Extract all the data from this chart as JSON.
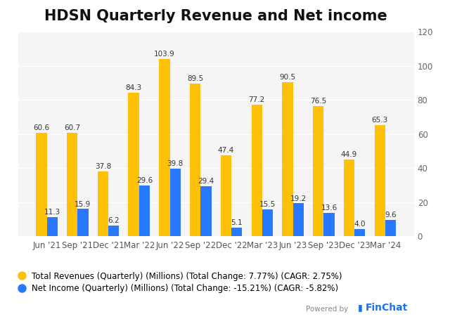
{
  "title": "HDSN Quarterly Revenue and Net income",
  "categories": [
    "Jun '21",
    "Sep '21",
    "Dec '21",
    "Mar '22",
    "Jun '22",
    "Sep '22",
    "Dec '22",
    "Mar '23",
    "Jun '23",
    "Sep '23",
    "Dec '23",
    "Mar '24"
  ],
  "revenue": [
    60.6,
    60.7,
    37.8,
    84.3,
    103.9,
    89.5,
    47.4,
    77.2,
    90.5,
    76.5,
    44.9,
    65.3
  ],
  "net_income": [
    11.3,
    15.9,
    6.2,
    29.6,
    39.8,
    29.4,
    5.1,
    15.5,
    19.2,
    13.6,
    4.0,
    9.6
  ],
  "revenue_color": "#FFC107",
  "net_income_color": "#2979FF",
  "background_color": "#ffffff",
  "plot_bg_color": "#f5f5f5",
  "ylim": [
    0,
    120
  ],
  "yticks": [
    0,
    20,
    40,
    60,
    80,
    100,
    120
  ],
  "legend_revenue": "Total Revenues (Quarterly) (Millions) (Total Change: 7.77%) (CAGR: 2.75%)",
  "legend_net_income": "Net Income (Quarterly) (Millions) (Total Change: -15.21%) (CAGR: -5.82%)",
  "bar_width": 0.35,
  "title_fontsize": 15,
  "label_fontsize": 7.5,
  "tick_fontsize": 8.5,
  "legend_fontsize": 8.5,
  "powered_by": "Powered by",
  "finchat": "FinChat"
}
